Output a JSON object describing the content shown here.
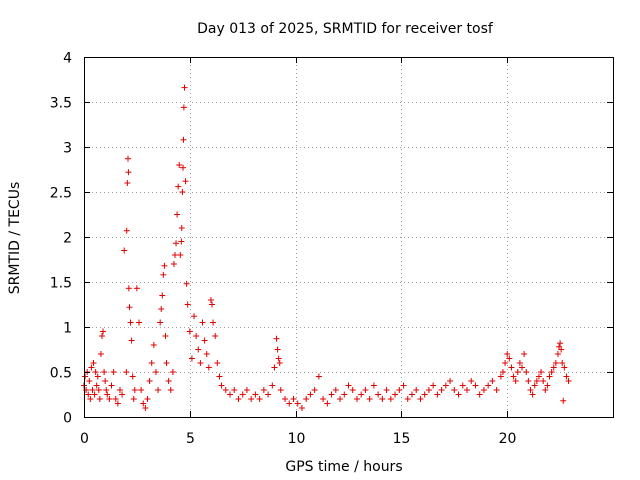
{
  "chart_data": {
    "type": "scatter",
    "title": "Day 013 of 2025, SRMTID for receiver tosf",
    "xlabel": "GPS time / hours",
    "ylabel": "SRMTID / TECUs",
    "xlim": [
      0,
      25
    ],
    "ylim": [
      0,
      4
    ],
    "xticks": [
      0,
      5,
      10,
      15,
      20
    ],
    "yticks": [
      0,
      0.5,
      1,
      1.5,
      2,
      2.5,
      3,
      3.5,
      4
    ],
    "xtick_labels": [
      "0",
      "5",
      "10",
      "15",
      "20"
    ],
    "ytick_labels": [
      "0",
      "0.5",
      "1",
      "1.5",
      "2",
      "2.5",
      "3",
      "3.5",
      "4"
    ],
    "grid": true,
    "marker": "+",
    "color": "#e00000",
    "series": [
      {
        "name": "SRMTID",
        "x": [
          0.0,
          0.05,
          0.1,
          0.15,
          0.2,
          0.25,
          0.3,
          0.35,
          0.4,
          0.45,
          0.5,
          0.55,
          0.6,
          0.65,
          0.7,
          0.75,
          0.8,
          0.85,
          0.9,
          0.95,
          1.0,
          1.05,
          1.1,
          1.2,
          1.3,
          1.4,
          1.5,
          1.6,
          1.7,
          1.8,
          1.9,
          2.0,
          2.02,
          2.05,
          2.08,
          2.1,
          2.12,
          2.15,
          2.2,
          2.25,
          2.3,
          2.35,
          2.4,
          2.5,
          2.6,
          2.7,
          2.8,
          2.9,
          3.0,
          3.1,
          3.2,
          3.3,
          3.4,
          3.5,
          3.6,
          3.65,
          3.7,
          3.75,
          3.8,
          3.85,
          3.9,
          4.0,
          4.1,
          4.2,
          4.25,
          4.3,
          4.35,
          4.4,
          4.45,
          4.5,
          4.55,
          4.6,
          4.62,
          4.65,
          4.68,
          4.7,
          4.72,
          4.75,
          4.8,
          4.85,
          4.9,
          5.0,
          5.1,
          5.2,
          5.3,
          5.4,
          5.5,
          5.6,
          5.7,
          5.8,
          5.9,
          6.0,
          6.05,
          6.1,
          6.2,
          6.3,
          6.4,
          6.5,
          6.7,
          6.9,
          7.1,
          7.3,
          7.5,
          7.7,
          7.9,
          8.1,
          8.3,
          8.5,
          8.7,
          8.9,
          9.0,
          9.1,
          9.15,
          9.2,
          9.25,
          9.3,
          9.5,
          9.7,
          9.9,
          10.1,
          10.3,
          10.5,
          10.7,
          10.9,
          11.1,
          11.3,
          11.5,
          11.7,
          11.9,
          12.1,
          12.3,
          12.5,
          12.7,
          12.9,
          13.1,
          13.3,
          13.5,
          13.7,
          13.9,
          14.1,
          14.3,
          14.5,
          14.7,
          14.9,
          15.1,
          15.3,
          15.5,
          15.7,
          15.9,
          16.1,
          16.3,
          16.5,
          16.7,
          16.9,
          17.1,
          17.3,
          17.5,
          17.7,
          17.9,
          18.1,
          18.3,
          18.5,
          18.7,
          18.9,
          19.1,
          19.3,
          19.5,
          19.7,
          19.8,
          19.9,
          20.0,
          20.1,
          20.2,
          20.3,
          20.4,
          20.5,
          20.6,
          20.7,
          20.8,
          20.9,
          21.0,
          21.1,
          21.2,
          21.3,
          21.4,
          21.5,
          21.6,
          21.7,
          21.8,
          21.9,
          22.0,
          22.1,
          22.2,
          22.3,
          22.4,
          22.45,
          22.5,
          22.55,
          22.6,
          22.65,
          22.7,
          22.8,
          22.9
        ],
        "y": [
          0.35,
          0.45,
          0.3,
          0.5,
          0.25,
          0.4,
          0.2,
          0.55,
          0.3,
          0.6,
          0.25,
          0.5,
          0.35,
          0.45,
          0.3,
          0.2,
          0.7,
          0.9,
          0.95,
          0.5,
          0.4,
          0.3,
          0.25,
          0.2,
          0.35,
          0.5,
          0.2,
          0.15,
          0.3,
          0.25,
          1.85,
          0.5,
          2.07,
          2.6,
          2.87,
          2.72,
          1.43,
          1.22,
          1.05,
          0.85,
          0.45,
          0.2,
          0.3,
          1.43,
          1.05,
          0.3,
          0.15,
          0.1,
          0.2,
          0.4,
          0.6,
          0.8,
          0.5,
          0.3,
          1.05,
          1.2,
          1.35,
          1.58,
          1.68,
          0.9,
          0.6,
          0.4,
          0.3,
          0.5,
          1.7,
          1.8,
          1.93,
          2.25,
          2.56,
          2.8,
          1.8,
          1.95,
          2.1,
          2.5,
          2.77,
          3.08,
          3.44,
          3.66,
          2.62,
          1.48,
          1.25,
          0.95,
          0.65,
          1.12,
          0.9,
          0.75,
          0.6,
          1.05,
          0.85,
          0.7,
          0.55,
          1.3,
          1.25,
          1.05,
          0.9,
          0.6,
          0.45,
          0.35,
          0.3,
          0.25,
          0.3,
          0.2,
          0.25,
          0.3,
          0.2,
          0.25,
          0.2,
          0.3,
          0.25,
          0.35,
          0.55,
          0.87,
          0.75,
          0.65,
          0.6,
          0.3,
          0.2,
          0.15,
          0.2,
          0.15,
          0.1,
          0.2,
          0.25,
          0.3,
          0.45,
          0.2,
          0.15,
          0.25,
          0.3,
          0.2,
          0.25,
          0.35,
          0.3,
          0.2,
          0.25,
          0.3,
          0.2,
          0.35,
          0.25,
          0.2,
          0.3,
          0.2,
          0.25,
          0.3,
          0.35,
          0.2,
          0.25,
          0.3,
          0.2,
          0.25,
          0.3,
          0.35,
          0.25,
          0.3,
          0.35,
          0.4,
          0.3,
          0.25,
          0.35,
          0.3,
          0.4,
          0.35,
          0.25,
          0.3,
          0.35,
          0.4,
          0.3,
          0.45,
          0.5,
          0.6,
          0.7,
          0.65,
          0.55,
          0.45,
          0.4,
          0.5,
          0.6,
          0.55,
          0.7,
          0.5,
          0.4,
          0.3,
          0.25,
          0.35,
          0.4,
          0.45,
          0.5,
          0.4,
          0.3,
          0.35,
          0.45,
          0.5,
          0.55,
          0.6,
          0.7,
          0.78,
          0.82,
          0.75,
          0.6,
          0.18,
          0.55,
          0.45,
          0.4
        ]
      }
    ]
  }
}
